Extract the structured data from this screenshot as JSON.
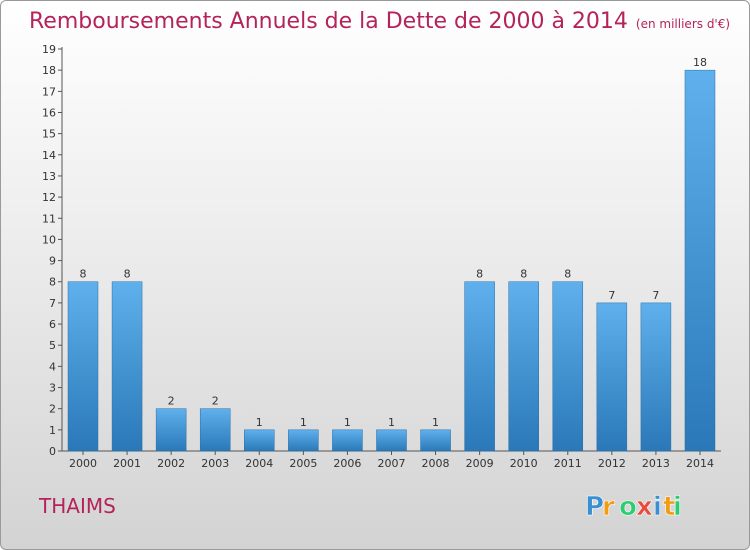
{
  "chart_data": {
    "type": "bar",
    "title": "Remboursements Annuels de la Dette de 2000 à 2014",
    "subtitle": "(en milliers d'€)",
    "categories": [
      "2000",
      "2001",
      "2002",
      "2003",
      "2004",
      "2005",
      "2006",
      "2007",
      "2008",
      "2009",
      "2010",
      "2011",
      "2012",
      "2013",
      "2014"
    ],
    "values": [
      8,
      8,
      2,
      2,
      1,
      1,
      1,
      1,
      1,
      8,
      8,
      8,
      7,
      7,
      18
    ],
    "ylim": [
      0,
      19
    ],
    "yticks": [
      0,
      1,
      2,
      3,
      4,
      5,
      6,
      7,
      8,
      9,
      10,
      11,
      12,
      13,
      14,
      15,
      16,
      17,
      18,
      19
    ],
    "grid": false,
    "bar_color": "#3a8fd0"
  },
  "commune": "THAIMS",
  "logo": {
    "text": "Proxiti",
    "colors": [
      "#3a8fd0",
      "#f39c12",
      "#2ecc71",
      "#e74c3c"
    ]
  }
}
